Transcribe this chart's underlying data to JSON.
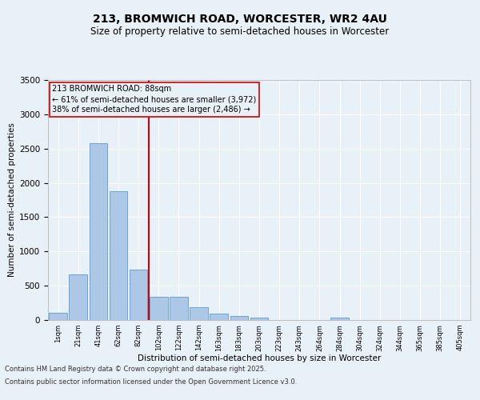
{
  "title1": "213, BROMWICH ROAD, WORCESTER, WR2 4AU",
  "title2": "Size of property relative to semi-detached houses in Worcester",
  "xlabel": "Distribution of semi-detached houses by size in Worcester",
  "ylabel": "Number of semi-detached properties",
  "annotation_line1": "213 BROMWICH ROAD: 88sqm",
  "annotation_line2": "← 61% of semi-detached houses are smaller (3,972)",
  "annotation_line3": "38% of semi-detached houses are larger (2,486) →",
  "footer1": "Contains HM Land Registry data © Crown copyright and database right 2025.",
  "footer2": "Contains public sector information licensed under the Open Government Licence v3.0.",
  "bar_labels": [
    "1sqm",
    "21sqm",
    "41sqm",
    "62sqm",
    "82sqm",
    "102sqm",
    "122sqm",
    "142sqm",
    "163sqm",
    "183sqm",
    "203sqm",
    "223sqm",
    "243sqm",
    "264sqm",
    "284sqm",
    "304sqm",
    "324sqm",
    "344sqm",
    "365sqm",
    "385sqm",
    "405sqm"
  ],
  "bar_values": [
    100,
    660,
    2580,
    1880,
    730,
    340,
    340,
    190,
    90,
    60,
    30,
    0,
    0,
    0,
    30,
    0,
    0,
    0,
    0,
    0,
    0
  ],
  "bar_color": "#adc8e6",
  "bar_edgecolor": "#5b9bd5",
  "vline_color": "#cc0000",
  "vline_x": 4.5,
  "ylim": [
    0,
    3500
  ],
  "yticks": [
    0,
    500,
    1000,
    1500,
    2000,
    2500,
    3000,
    3500
  ],
  "bg_color": "#e8f0f8",
  "grid_color": "#ffffff",
  "title1_fontsize": 10,
  "title2_fontsize": 8.5,
  "annotation_fontsize": 7,
  "footer_fontsize": 6
}
